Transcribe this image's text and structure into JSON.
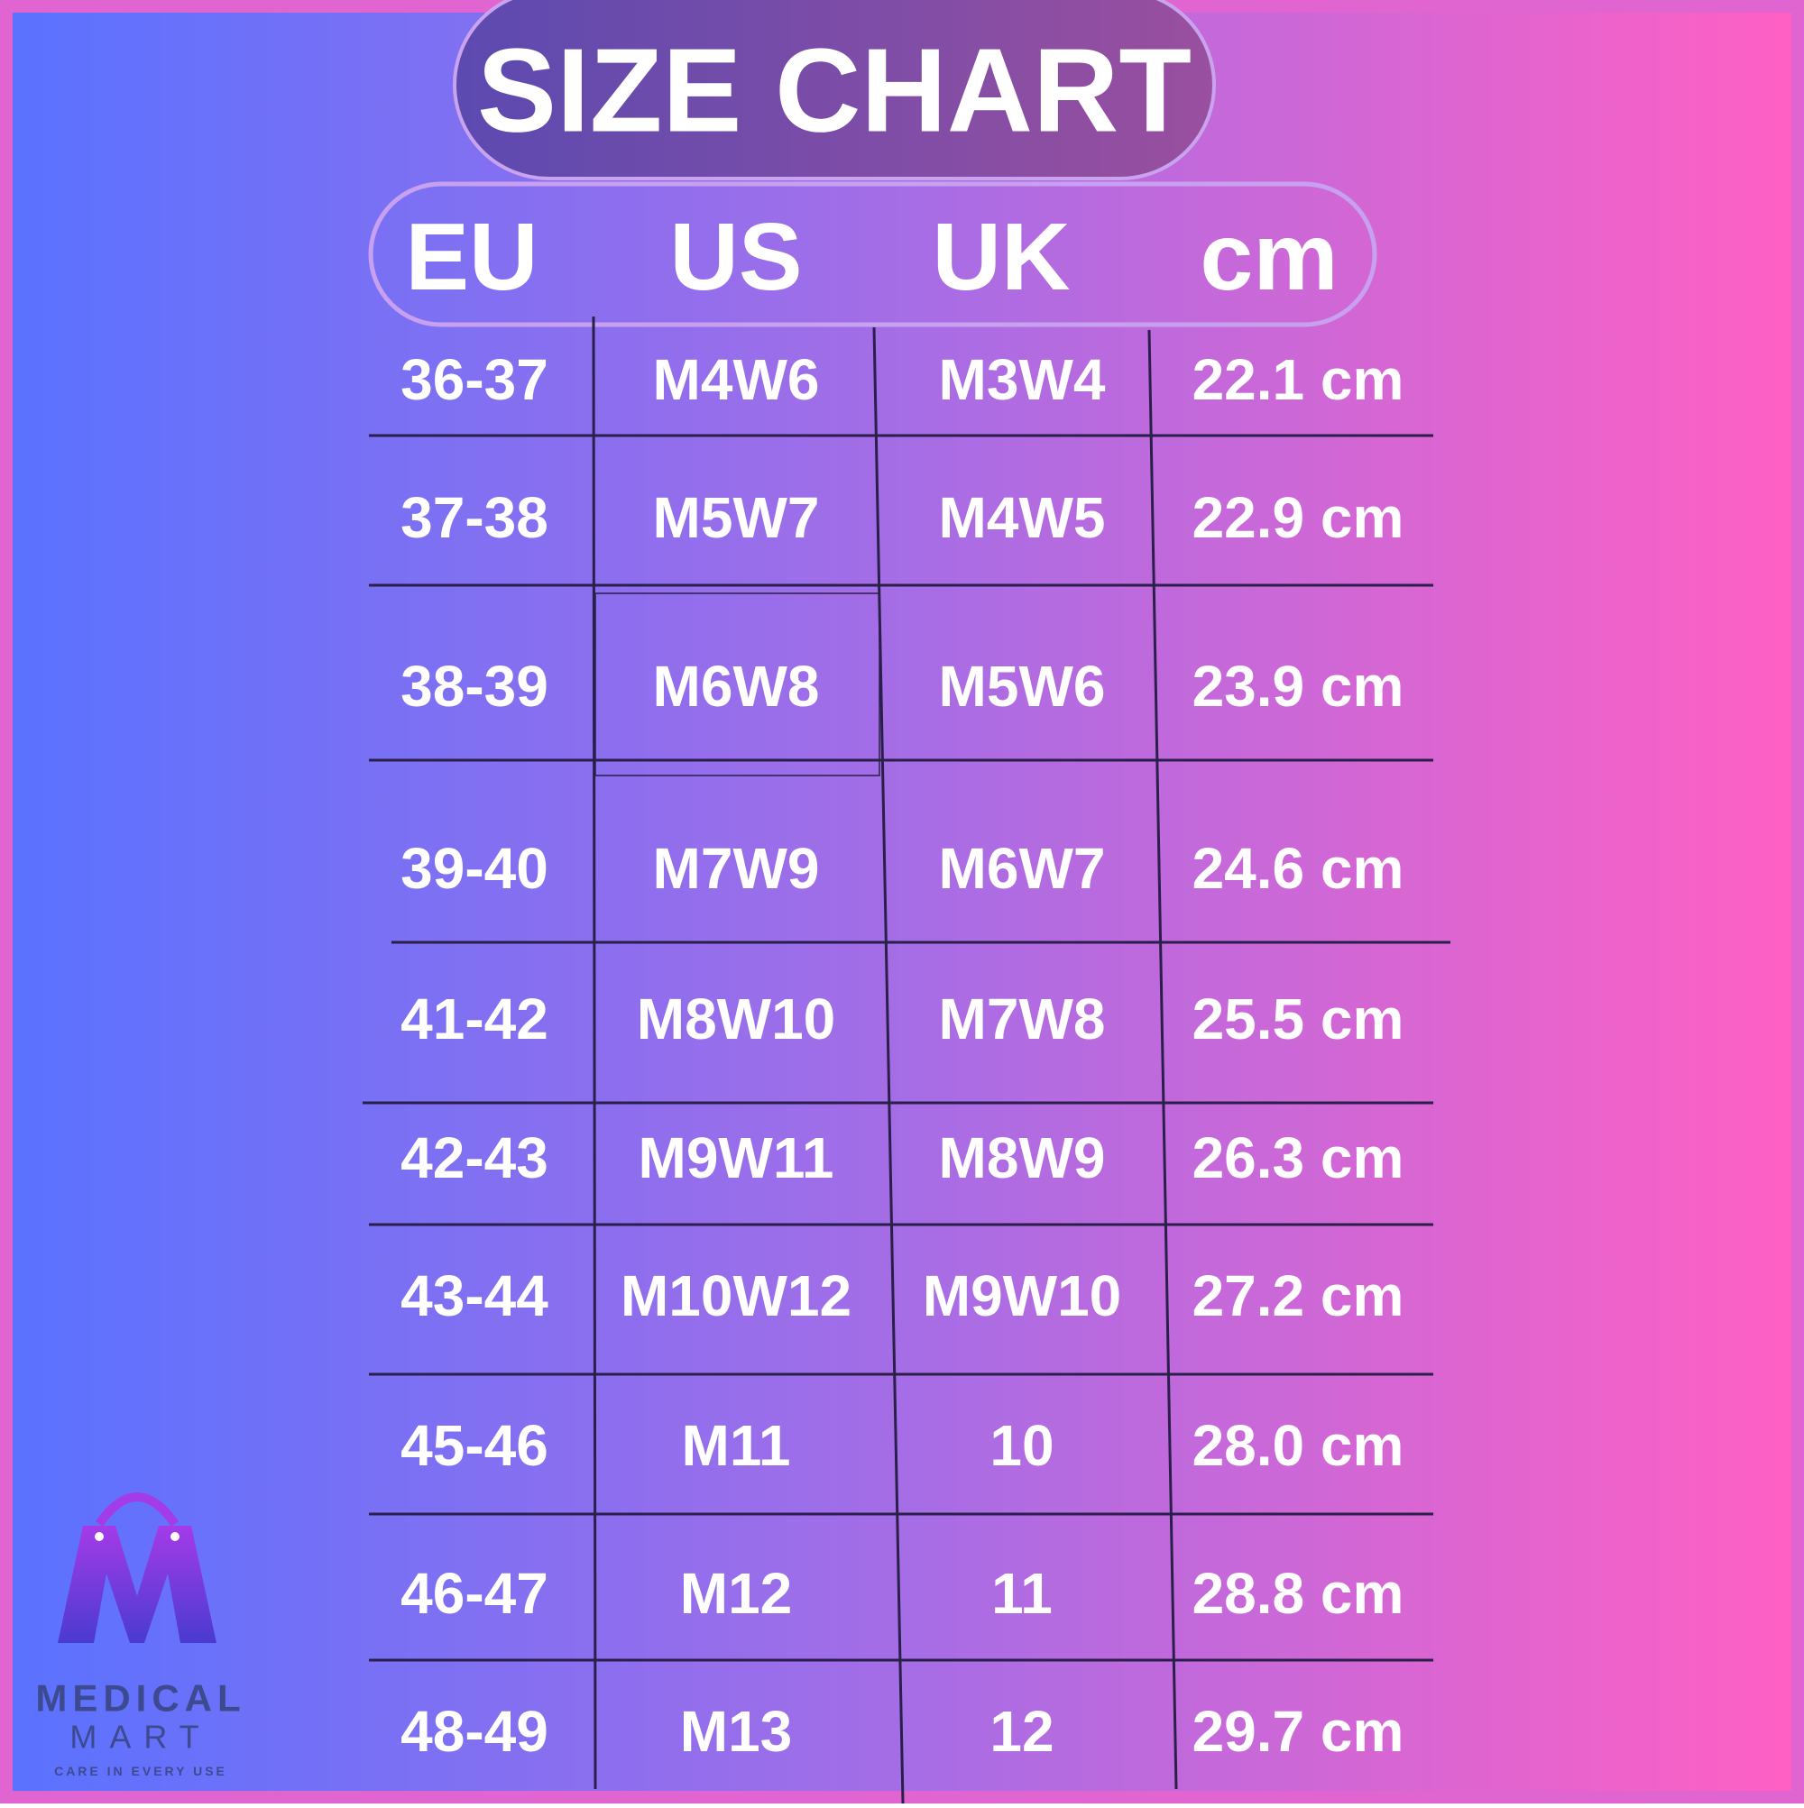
{
  "header": {
    "title": "SIZE CHART"
  },
  "table": {
    "columns": [
      "EU",
      "US",
      "UK",
      "cm"
    ],
    "rows": [
      [
        "36-37",
        "M4W6",
        "M3W4",
        "22.1 cm"
      ],
      [
        "37-38",
        "M5W7",
        "M4W5",
        "22.9 cm"
      ],
      [
        "38-39",
        "M6W8",
        "M5W6",
        "23.9 cm"
      ],
      [
        "39-40",
        "M7W9",
        "M6W7",
        "24.6 cm"
      ],
      [
        "41-42",
        "M8W10",
        "M7W8",
        "25.5 cm"
      ],
      [
        "42-43",
        "M9W11",
        "M8W9",
        "26.3 cm"
      ],
      [
        "43-44",
        "M10W12",
        "M9W10",
        "27.2 cm"
      ],
      [
        "45-46",
        "M11",
        "10",
        "28.0 cm"
      ],
      [
        "46-47",
        "M12",
        "11",
        "28.8 cm"
      ],
      [
        "48-49",
        "M13",
        "12",
        "29.7 cm"
      ]
    ]
  },
  "logo": {
    "name": "MEDICAL",
    "name2": "MART",
    "tagline": "CARE IN EVERY USE"
  }
}
